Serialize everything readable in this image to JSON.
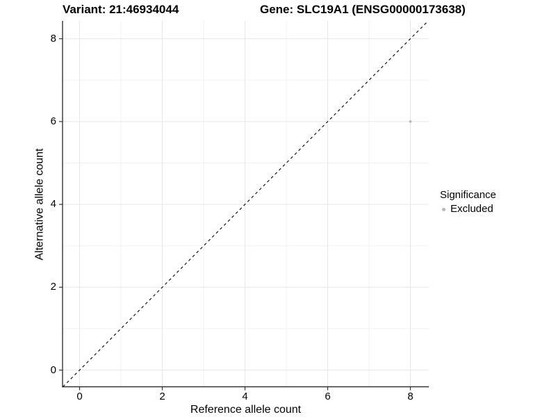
{
  "chart_data": {
    "type": "scatter",
    "title_left": "Variant: 21:46934044",
    "title_right": "Gene: SLC19A1 (ENSG00000173638)",
    "xlabel": "Reference allele count",
    "ylabel": "Alternative allele count",
    "xlim": [
      -0.4,
      8.45
    ],
    "ylim": [
      -0.4,
      8.43
    ],
    "x_major_ticks": [
      0,
      2,
      4,
      6,
      8
    ],
    "y_major_ticks": [
      0,
      2,
      4,
      6,
      8
    ],
    "x_minor_gridlines": [
      1,
      3,
      5,
      7
    ],
    "y_minor_gridlines": [
      1,
      3,
      5,
      7
    ],
    "grid": "major and minor gridlines on white background",
    "series": [
      {
        "name": "Excluded",
        "color": "#b8b8b8",
        "points": [
          {
            "x": 8,
            "y": 6
          }
        ]
      }
    ],
    "reference_line": {
      "type": "identity y=x",
      "style": "dashed",
      "color": "#000000"
    },
    "legend": {
      "title": "Significance",
      "position": "right",
      "items": [
        {
          "label": "Excluded",
          "color": "#b8b8b8"
        }
      ]
    }
  },
  "colors": {
    "background": "#ffffff",
    "axis": "#333333",
    "tick_mark": "#333333",
    "grid_major": "#e6e6e6",
    "grid_minor": "#f1f1f1",
    "point": "#b8b8b8",
    "dashed_line": "#000000",
    "text": "#000000"
  }
}
